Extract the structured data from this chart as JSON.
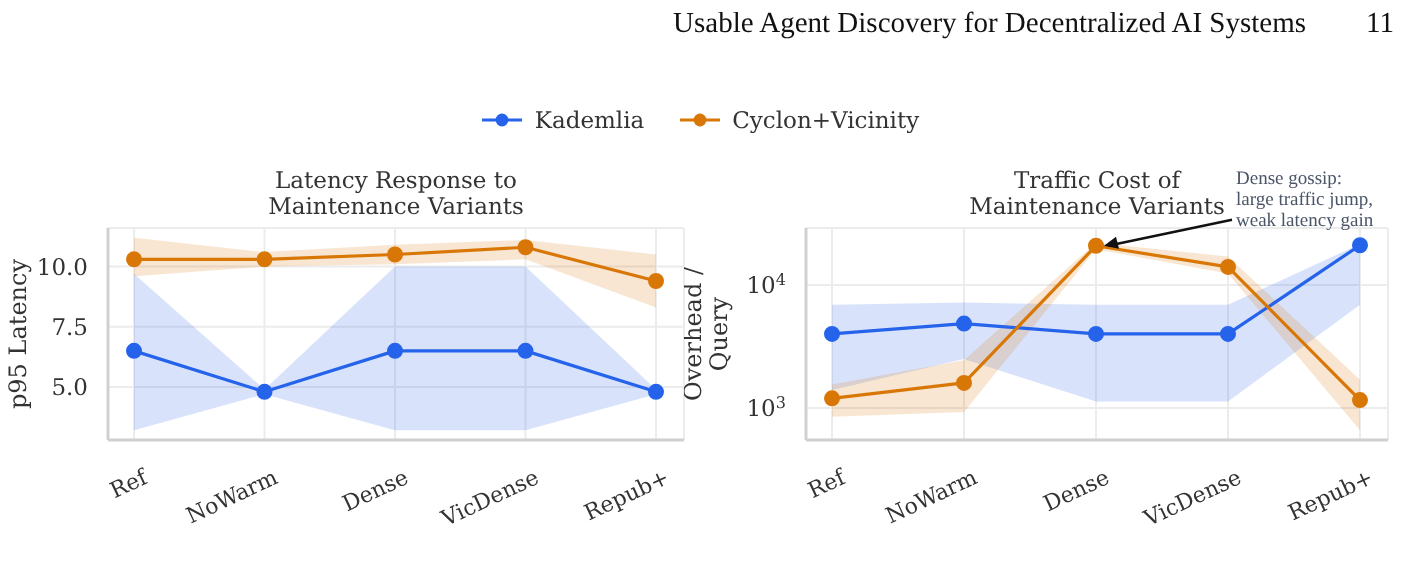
{
  "chart_data": [
    {
      "type": "line",
      "title": "Latency Response to Maintenance Variants",
      "ylabel": "p95 Latency",
      "annotations": [
        "Usable Agent Discovery for Decentralized AI Systems",
        "11"
      ],
      "categories": [
        "Ref",
        "NoWarm",
        "Dense",
        "VicDense",
        "Repub+"
      ],
      "series": [
        {
          "name": "Kademlia",
          "color": "#2563eb",
          "values": [
            6.5,
            4.8,
            6.5,
            6.5,
            4.8
          ],
          "lower": [
            3.2,
            4.7,
            3.2,
            3.2,
            4.7
          ],
          "upper": [
            9.7,
            4.9,
            10.0,
            10.0,
            4.9
          ]
        },
        {
          "name": "Cyclon+Vicinity",
          "color": "#d97706",
          "values": [
            10.3,
            10.3,
            10.5,
            10.8,
            9.4
          ],
          "lower": [
            9.6,
            10.0,
            10.1,
            10.3,
            8.3
          ],
          "upper": [
            11.2,
            10.6,
            10.9,
            11.1,
            10.5
          ]
        }
      ],
      "ylim": [
        2.8,
        11.6
      ],
      "yticks": [
        {
          "value": 5,
          "label": "5.0"
        },
        7.5,
        {
          "value": 10,
          "label": "10.0"
        }
      ],
      "grid": true,
      "legend": "top",
      "marker": "circle"
    },
    {
      "type": "line",
      "title": "Traffic Cost of Maintenance Variants",
      "ylabel": "Overhead / Query",
      "annotations": [
        {
          "text": "Dense gossip:\nlarge traffic jump,\nweak latency gain",
          "x": "Dense",
          "y": 20800
        }
      ],
      "categories": [
        "Ref",
        "NoWarm",
        "Dense",
        "VicDense",
        "Repub+"
      ],
      "series": [
        {
          "name": "Kademlia",
          "color": "#2563eb",
          "values": [
            4000,
            4850,
            4000,
            4000,
            21000
          ],
          "lower": [
            1400,
            2500,
            1130,
            1130,
            6900
          ],
          "upper": [
            6900,
            7200,
            6900,
            6900,
            21500
          ]
        },
        {
          "name": "Cyclon+Vicinity",
          "color": "#d97706",
          "values": [
            1200,
            1600,
            20800,
            14000,
            1160
          ],
          "lower": [
            850,
            930,
            19500,
            12400,
            660
          ],
          "upper": [
            1550,
            2450,
            22000,
            17000,
            1700
          ]
        }
      ],
      "log": "y",
      "ylim": [
        550,
        29000
      ],
      "yticks": [
        {
          "value": 1000,
          "label": "10$^{3}$"
        },
        {
          "value": 10000,
          "label": "10$^{4}$"
        }
      ],
      "grid": true,
      "marker": "circle"
    }
  ]
}
